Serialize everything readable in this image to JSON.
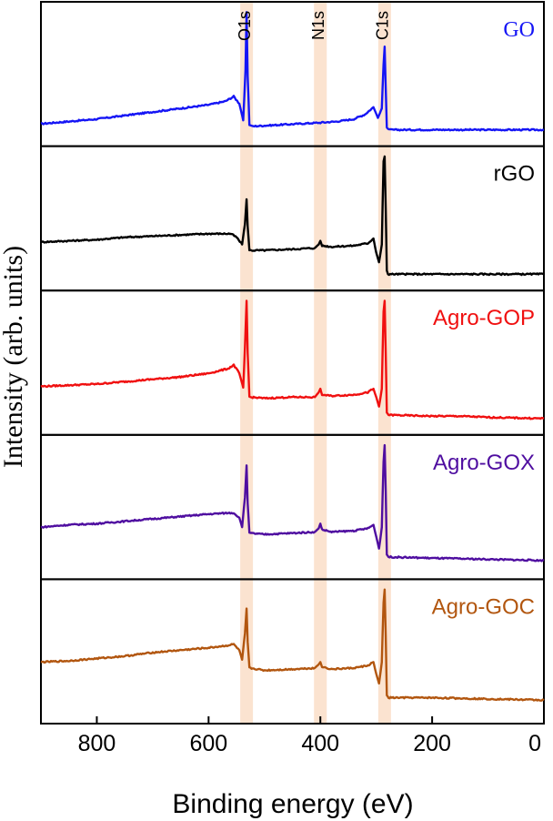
{
  "chart_data": {
    "type": "line",
    "title": "",
    "xlabel": "Binding energy (eV)",
    "ylabel": "Intensity (arb. units)",
    "xlim": [
      900,
      0
    ],
    "x_reversed": true,
    "xticks": [
      800,
      600,
      400,
      200,
      0
    ],
    "grid": false,
    "y_ticks_shown": false,
    "layout": "stacked panels, one per sample",
    "highlight_bands": [
      {
        "label": "O1s",
        "x": 532,
        "color": "#fbe3d0"
      },
      {
        "label": "N1s",
        "x": 400,
        "color": "#fbe3d0"
      },
      {
        "label": "C1s",
        "x": 285,
        "color": "#fbe3d0"
      }
    ],
    "series": [
      {
        "name": "GO",
        "color": "#1515f5",
        "points": [
          [
            900,
            0.05
          ],
          [
            850,
            0.07
          ],
          [
            800,
            0.09
          ],
          [
            750,
            0.12
          ],
          [
            700,
            0.15
          ],
          [
            650,
            0.18
          ],
          [
            600,
            0.21
          ],
          [
            570,
            0.24
          ],
          [
            555,
            0.28
          ],
          [
            545,
            0.22
          ],
          [
            538,
            0.08
          ],
          [
            534,
            0.5
          ],
          [
            532,
            0.99
          ],
          [
            530,
            0.45
          ],
          [
            527,
            0.04
          ],
          [
            520,
            0.03
          ],
          [
            480,
            0.04
          ],
          [
            440,
            0.05
          ],
          [
            400,
            0.06
          ],
          [
            370,
            0.07
          ],
          [
            340,
            0.09
          ],
          [
            320,
            0.13
          ],
          [
            305,
            0.19
          ],
          [
            297,
            0.1
          ],
          [
            290,
            0.18
          ],
          [
            287,
            0.55
          ],
          [
            285,
            0.7
          ],
          [
            283,
            0.35
          ],
          [
            281,
            0.02
          ],
          [
            278,
            0.0
          ],
          [
            200,
            0.0
          ],
          [
            100,
            0.0
          ],
          [
            0,
            0.0
          ]
        ]
      },
      {
        "name": "rGO",
        "color": "#000000",
        "points": [
          [
            900,
            0.27
          ],
          [
            850,
            0.28
          ],
          [
            800,
            0.29
          ],
          [
            750,
            0.31
          ],
          [
            700,
            0.32
          ],
          [
            650,
            0.33
          ],
          [
            600,
            0.34
          ],
          [
            560,
            0.34
          ],
          [
            550,
            0.31
          ],
          [
            540,
            0.25
          ],
          [
            535,
            0.42
          ],
          [
            532,
            0.63
          ],
          [
            530,
            0.4
          ],
          [
            527,
            0.2
          ],
          [
            500,
            0.2
          ],
          [
            450,
            0.21
          ],
          [
            410,
            0.22
          ],
          [
            403,
            0.25
          ],
          [
            400,
            0.28
          ],
          [
            397,
            0.24
          ],
          [
            380,
            0.23
          ],
          [
            340,
            0.24
          ],
          [
            315,
            0.26
          ],
          [
            305,
            0.3
          ],
          [
            300,
            0.18
          ],
          [
            295,
            0.1
          ],
          [
            290,
            0.25
          ],
          [
            287,
            0.95
          ],
          [
            285,
            0.99
          ],
          [
            283,
            0.55
          ],
          [
            281,
            0.03
          ],
          [
            279,
            0.0
          ],
          [
            200,
            0.0
          ],
          [
            100,
            0.0
          ],
          [
            0,
            0.0
          ]
        ]
      },
      {
        "name": "Agro-GOP",
        "color": "#f01010",
        "points": [
          [
            900,
            0.27
          ],
          [
            850,
            0.28
          ],
          [
            800,
            0.29
          ],
          [
            750,
            0.31
          ],
          [
            700,
            0.33
          ],
          [
            650,
            0.35
          ],
          [
            600,
            0.38
          ],
          [
            565,
            0.42
          ],
          [
            555,
            0.45
          ],
          [
            545,
            0.38
          ],
          [
            538,
            0.26
          ],
          [
            535,
            0.6
          ],
          [
            532,
            0.99
          ],
          [
            530,
            0.55
          ],
          [
            527,
            0.18
          ],
          [
            500,
            0.17
          ],
          [
            450,
            0.18
          ],
          [
            410,
            0.18
          ],
          [
            403,
            0.22
          ],
          [
            400,
            0.25
          ],
          [
            397,
            0.2
          ],
          [
            380,
            0.19
          ],
          [
            340,
            0.2
          ],
          [
            315,
            0.22
          ],
          [
            305,
            0.25
          ],
          [
            300,
            0.18
          ],
          [
            295,
            0.1
          ],
          [
            290,
            0.25
          ],
          [
            287,
            0.9
          ],
          [
            285,
            0.99
          ],
          [
            283,
            0.55
          ],
          [
            281,
            0.05
          ],
          [
            278,
            0.03
          ],
          [
            200,
            0.02
          ],
          [
            150,
            0.02
          ],
          [
            100,
            0.01
          ],
          [
            0,
            0.0
          ]
        ]
      },
      {
        "name": "Agro-GOX",
        "color": "#4f0ea0",
        "points": [
          [
            900,
            0.3
          ],
          [
            850,
            0.32
          ],
          [
            800,
            0.33
          ],
          [
            750,
            0.35
          ],
          [
            700,
            0.37
          ],
          [
            650,
            0.39
          ],
          [
            600,
            0.41
          ],
          [
            565,
            0.42
          ],
          [
            555,
            0.42
          ],
          [
            545,
            0.38
          ],
          [
            540,
            0.3
          ],
          [
            535,
            0.55
          ],
          [
            532,
            0.82
          ],
          [
            530,
            0.5
          ],
          [
            527,
            0.25
          ],
          [
            500,
            0.24
          ],
          [
            450,
            0.25
          ],
          [
            410,
            0.26
          ],
          [
            403,
            0.29
          ],
          [
            400,
            0.33
          ],
          [
            397,
            0.28
          ],
          [
            380,
            0.26
          ],
          [
            340,
            0.27
          ],
          [
            315,
            0.29
          ],
          [
            305,
            0.32
          ],
          [
            300,
            0.22
          ],
          [
            295,
            0.12
          ],
          [
            290,
            0.3
          ],
          [
            287,
            0.85
          ],
          [
            285,
            0.99
          ],
          [
            283,
            0.6
          ],
          [
            281,
            0.07
          ],
          [
            278,
            0.05
          ],
          [
            200,
            0.04
          ],
          [
            100,
            0.03
          ],
          [
            0,
            0.02
          ]
        ]
      },
      {
        "name": "Agro-GOC",
        "color": "#b2560f",
        "points": [
          [
            900,
            0.38
          ],
          [
            850,
            0.39
          ],
          [
            800,
            0.41
          ],
          [
            750,
            0.43
          ],
          [
            700,
            0.46
          ],
          [
            650,
            0.48
          ],
          [
            600,
            0.5
          ],
          [
            565,
            0.52
          ],
          [
            555,
            0.53
          ],
          [
            545,
            0.48
          ],
          [
            540,
            0.4
          ],
          [
            535,
            0.62
          ],
          [
            532,
            0.83
          ],
          [
            530,
            0.55
          ],
          [
            527,
            0.33
          ],
          [
            500,
            0.31
          ],
          [
            450,
            0.32
          ],
          [
            410,
            0.33
          ],
          [
            403,
            0.36
          ],
          [
            400,
            0.38
          ],
          [
            397,
            0.34
          ],
          [
            380,
            0.32
          ],
          [
            340,
            0.33
          ],
          [
            315,
            0.35
          ],
          [
            305,
            0.38
          ],
          [
            300,
            0.28
          ],
          [
            295,
            0.2
          ],
          [
            290,
            0.38
          ],
          [
            287,
            0.88
          ],
          [
            285,
            0.99
          ],
          [
            283,
            0.6
          ],
          [
            281,
            0.1
          ],
          [
            278,
            0.08
          ],
          [
            200,
            0.08
          ],
          [
            100,
            0.07
          ],
          [
            0,
            0.06
          ]
        ]
      }
    ]
  }
}
